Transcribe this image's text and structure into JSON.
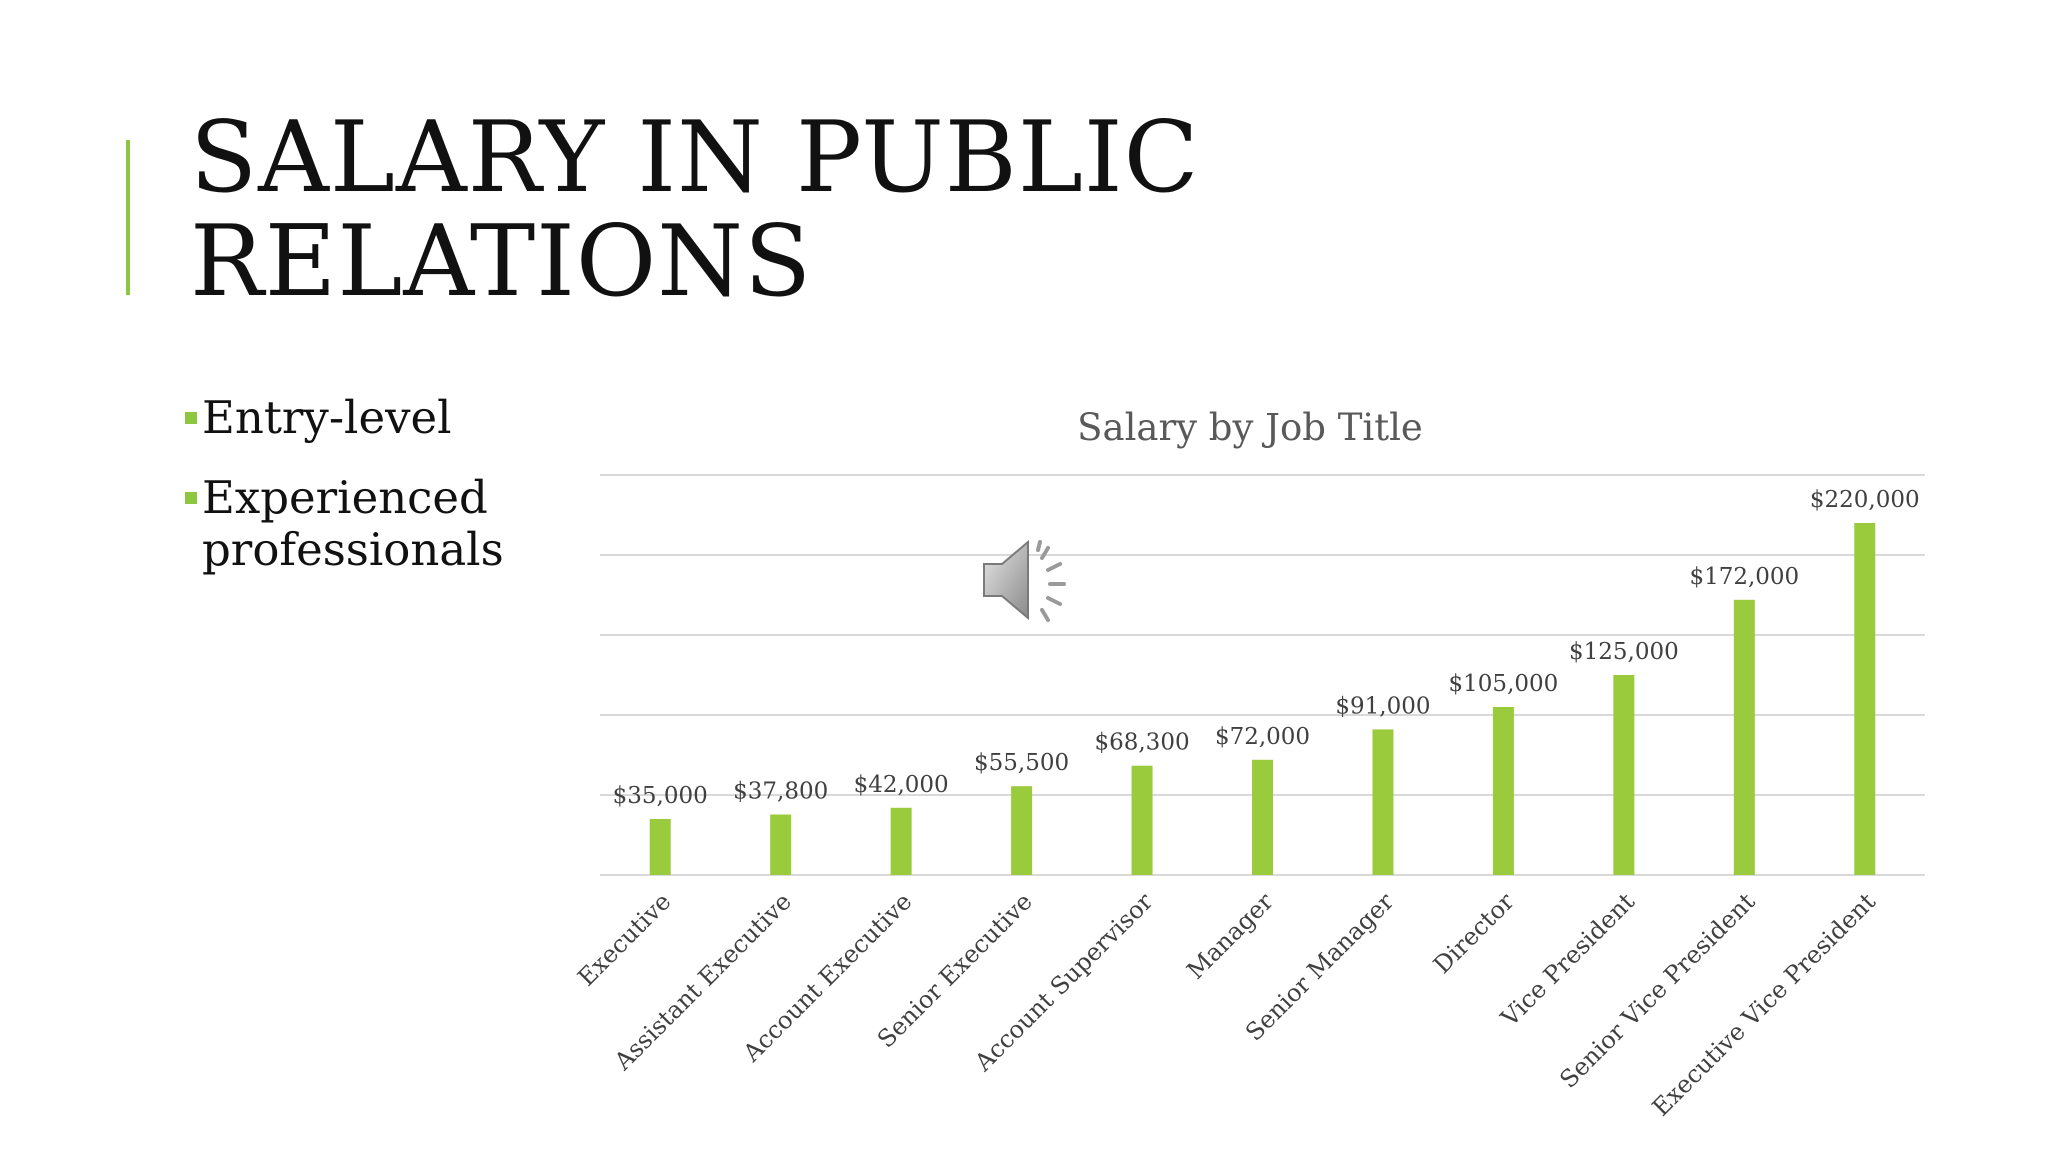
{
  "slide": {
    "title_line1": "SALARY IN PUBLIC",
    "title_line2": "RELATIONS",
    "bullets": [
      "Entry-level",
      "Experienced professionals"
    ],
    "accent_color": "#8dc63f",
    "media_icon": "speaker-icon"
  },
  "chart_data": {
    "type": "bar",
    "title": "Salary by Job Title",
    "categories": [
      "Executive",
      "Assistant Executive",
      "Account Executive",
      "Senior Executive",
      "Account Supervisor",
      "Manager",
      "Senior Manager",
      "Director",
      "Vice President",
      "Senior Vice President",
      "Executive Vice President"
    ],
    "values": [
      35000,
      37800,
      42000,
      55500,
      68300,
      72000,
      91000,
      105000,
      125000,
      172000,
      220000
    ],
    "data_labels": [
      "$35,000",
      "$37,800",
      "$42,000",
      "$55,500",
      "$68,300",
      "$72,000",
      "$91,000",
      "$105,000",
      "$125,000",
      "$172,000",
      "$220,000"
    ],
    "ylim": [
      0,
      250000
    ],
    "gridline_step": 50000,
    "grid": true,
    "y_tick_labels_visible": false,
    "bar_color": "#9acb3c",
    "grid_color": "#d9d9d9",
    "text_color": "#404040",
    "title_color": "#595959"
  }
}
